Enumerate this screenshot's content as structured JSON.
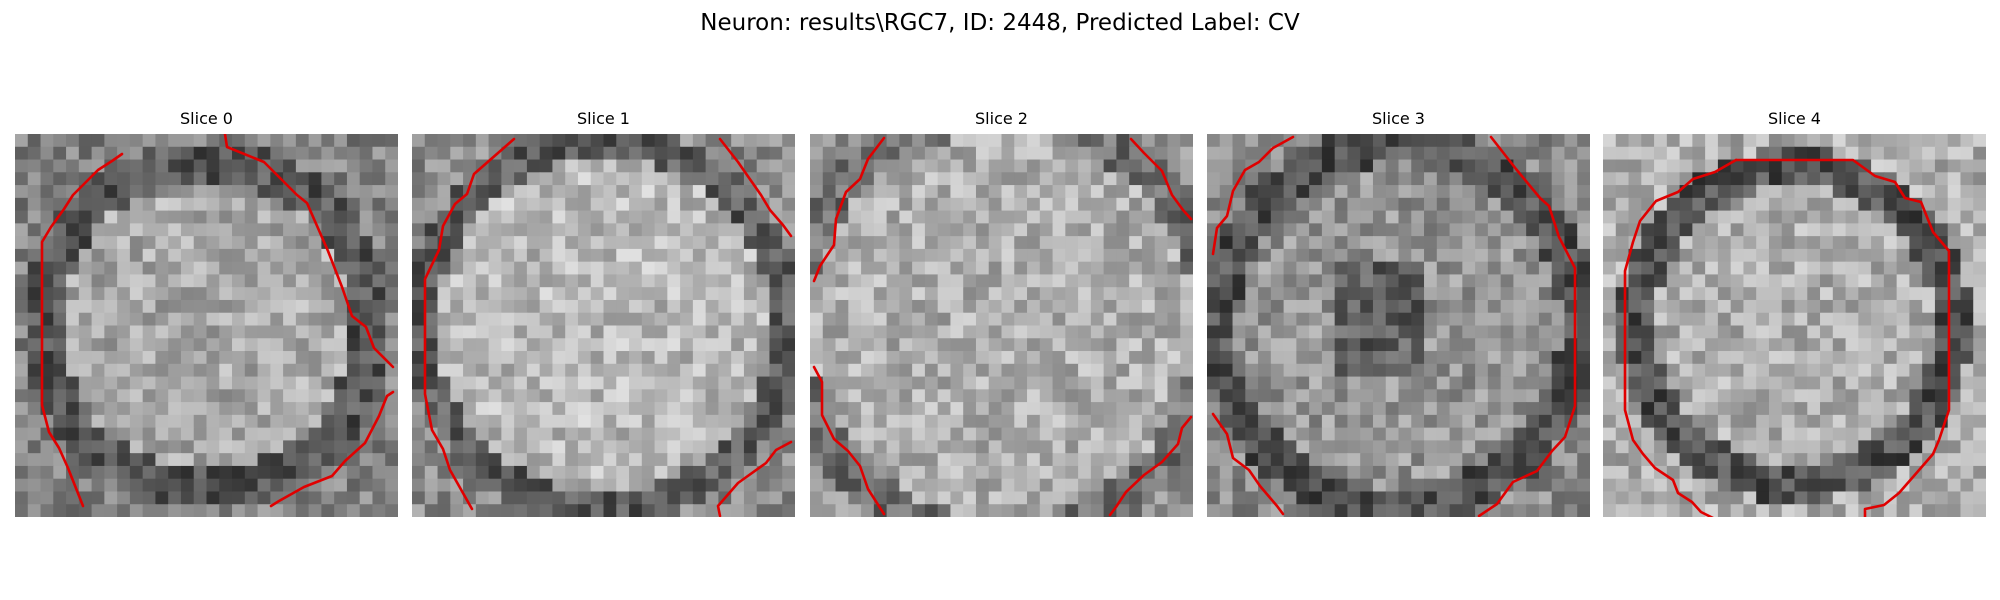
{
  "figure": {
    "title": "Neuron: results\\RGC7, ID: 2448, Predicted Label: CV"
  },
  "slices": [
    {
      "title": "Slice 0"
    },
    {
      "title": "Slice 1"
    },
    {
      "title": "Slice 2"
    },
    {
      "title": "Slice 3"
    },
    {
      "title": "Slice 4"
    }
  ],
  "colors": {
    "contour": "#e00000",
    "colormap": "gray"
  }
}
